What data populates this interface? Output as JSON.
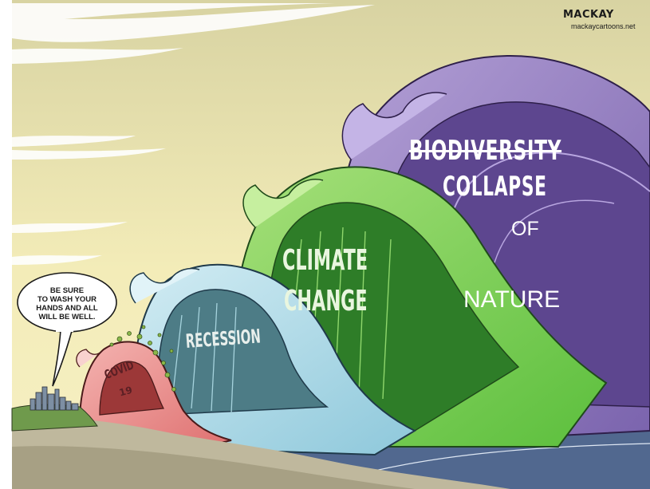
{
  "credit": {
    "artist": "MACKAY",
    "website": "mackaycartoons.net"
  },
  "speech_bubble": {
    "lines": [
      "BE SURE",
      "TO WASH YOUR",
      "HANDS AND ALL",
      "WILL BE WELL."
    ]
  },
  "waves": {
    "covid": {
      "label": "COVID",
      "number": "19",
      "color": "#e37b7b"
    },
    "recession": {
      "label": "RECESSION",
      "color": "#a9d6e2"
    },
    "climate_change": {
      "line1": "CLIMATE",
      "line2": "CHANGE",
      "color": "#7fcf57"
    },
    "collapse": {
      "struck_word": "BIODIVERSITY",
      "line1": "COLLAPSE",
      "line2": "OF",
      "line3": "NATURE",
      "color": "#9a84c4"
    }
  },
  "colors": {
    "sky": "#f1eab3",
    "ocean": "#5f7396",
    "sand": "#cfc9b0"
  },
  "icons": [
    "city-skyline",
    "virus-particles",
    "speech-bubble"
  ]
}
